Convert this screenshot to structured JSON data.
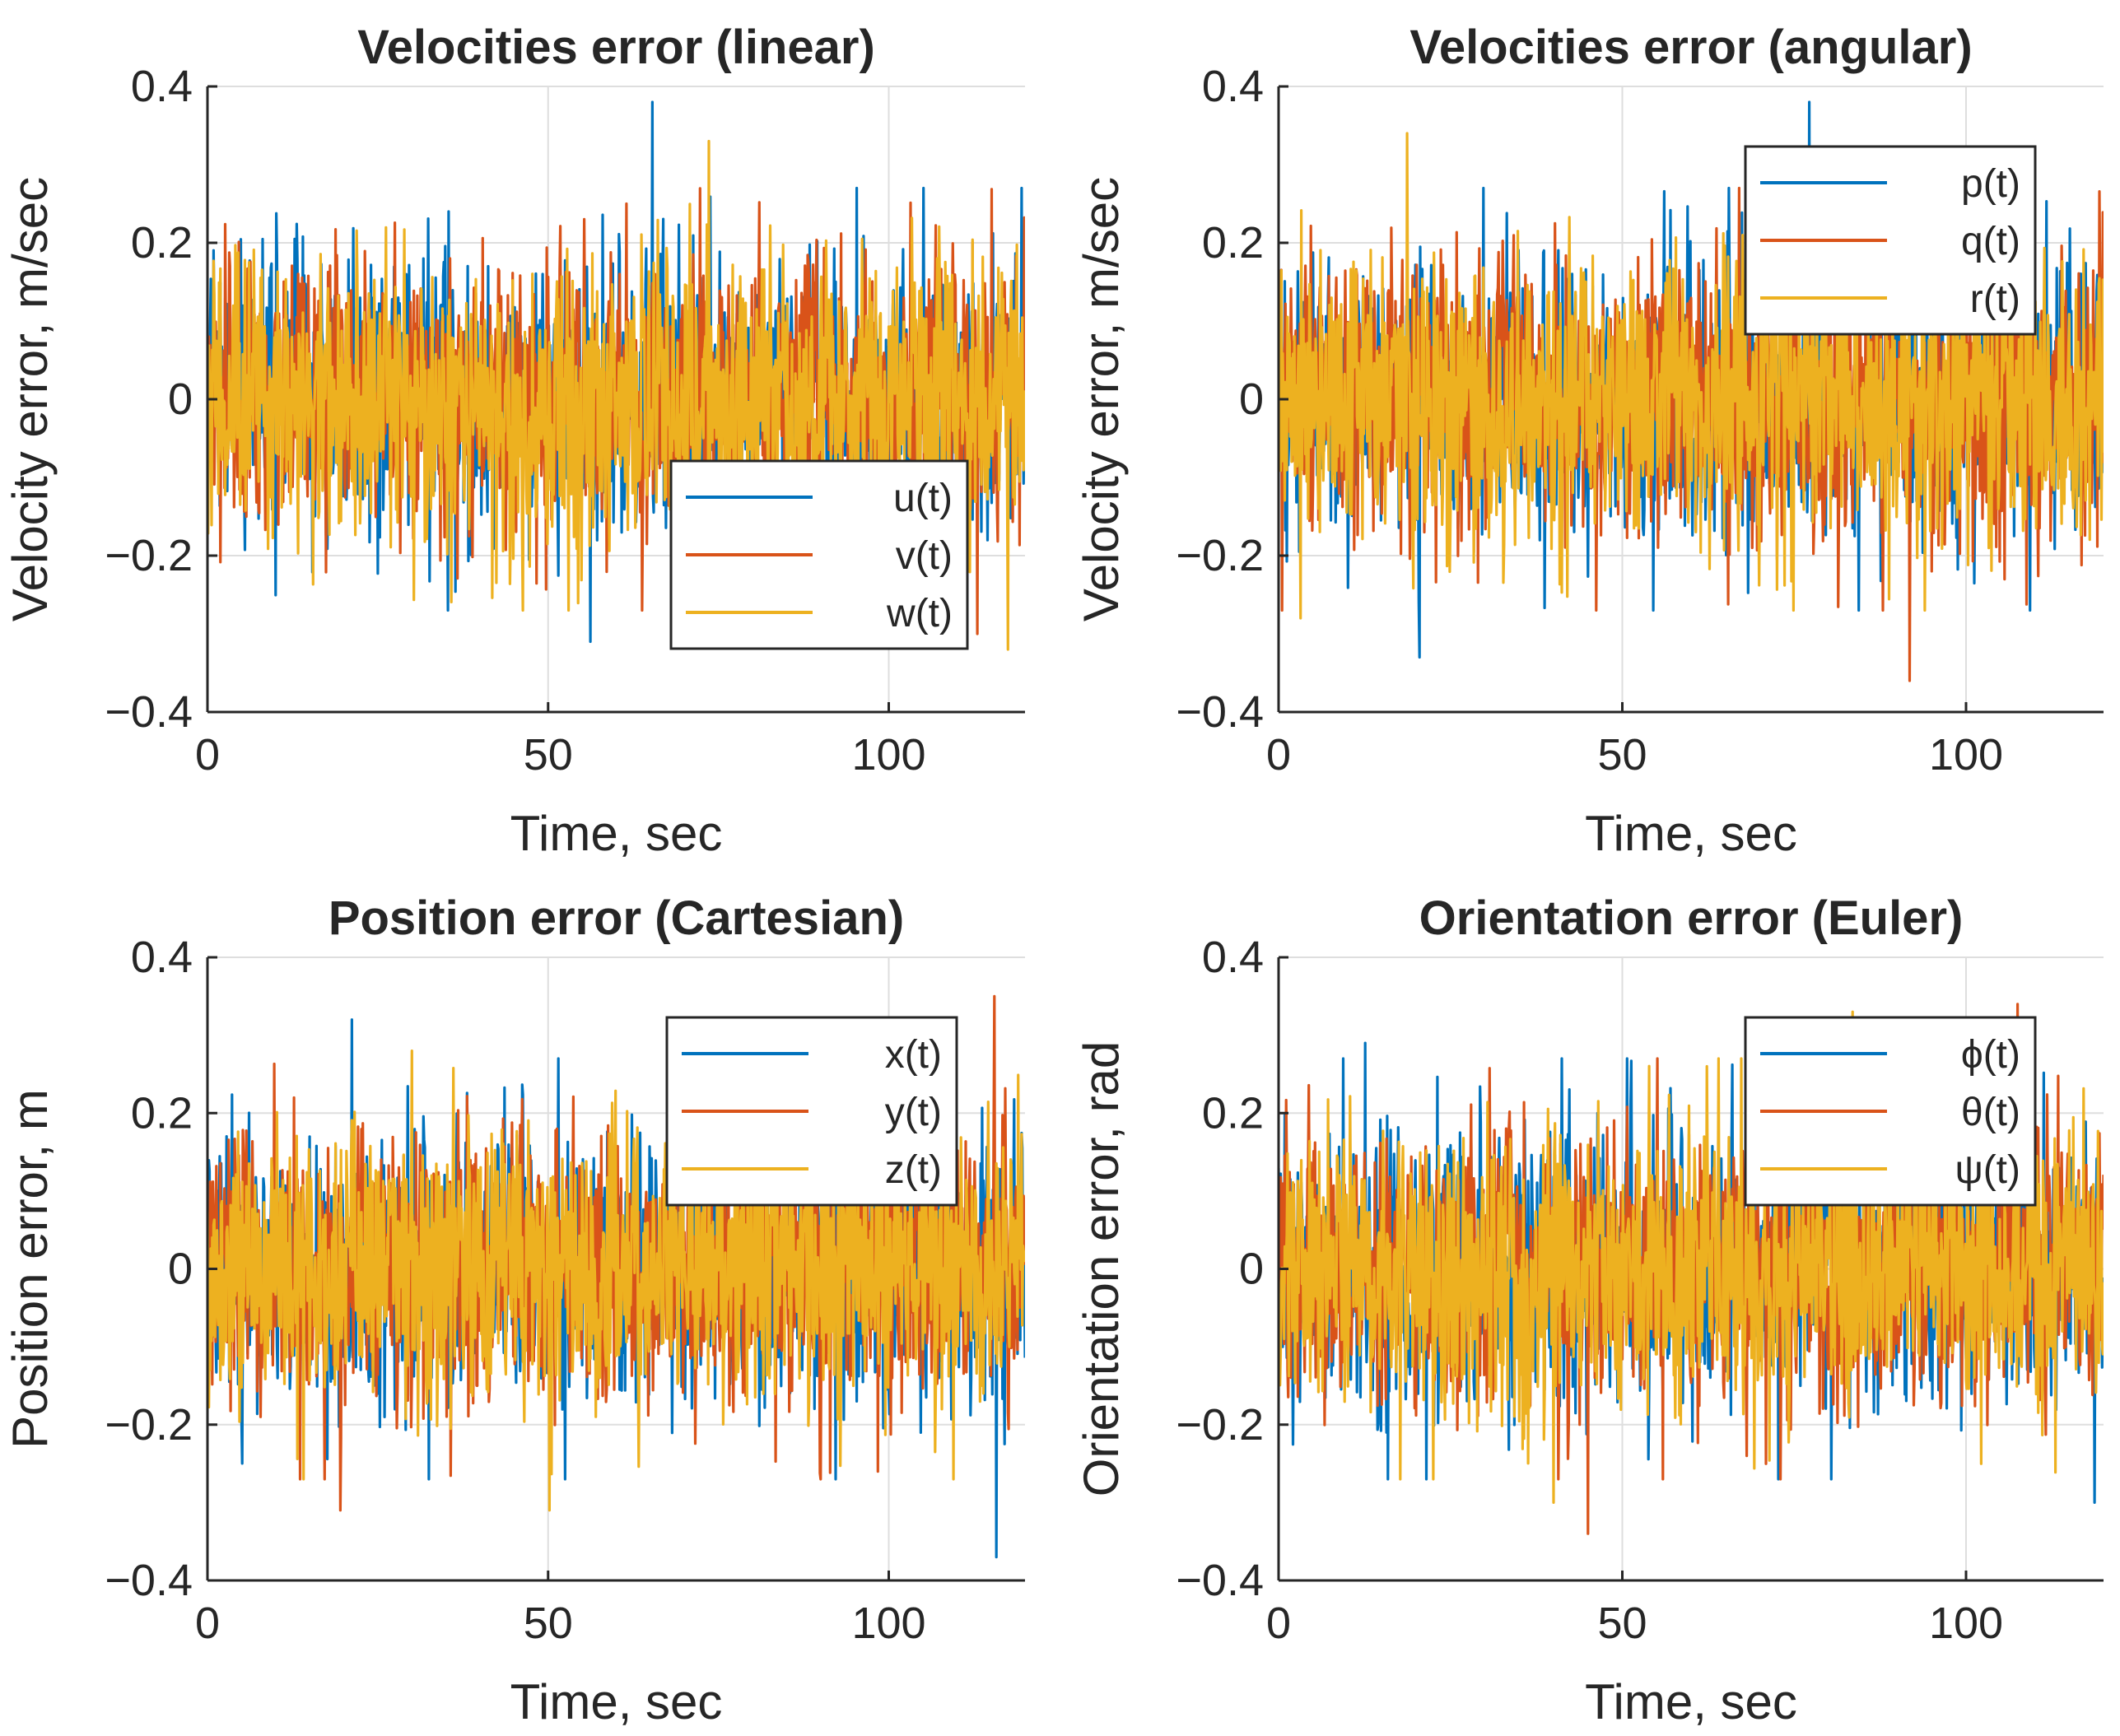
{
  "figure": {
    "background": "#ffffff"
  },
  "colors": {
    "series1": "#0072BD",
    "series2": "#D95319",
    "series3": "#EDB120",
    "grid": "#dedede",
    "axis": "#262626"
  },
  "chart_data": [
    {
      "type": "line",
      "title": "Velocities error (linear)",
      "xlabel": "Time, sec",
      "ylabel": "Velocity error, m/sec",
      "xlim": [
        0,
        120
      ],
      "ylim": [
        -0.4,
        0.4
      ],
      "xticks": [
        0,
        50,
        100
      ],
      "xtick_labels": [
        "0",
        "50",
        "100"
      ],
      "yticks": [
        -0.4,
        -0.2,
        0,
        0.2,
        0.4
      ],
      "ytick_labels": [
        "−0.4",
        "−0.2",
        "0",
        "0.2",
        "0.4"
      ],
      "grid": true,
      "legend_position": "lower-right",
      "noise_std": 0.09,
      "series": [
        {
          "name": "u(t)",
          "color": "#0072BD",
          "peak": {
            "x": 65.3,
            "y": 0.38
          },
          "trough": {
            "x": 56.2,
            "y": -0.31
          }
        },
        {
          "name": "v(t)",
          "color": "#D95319",
          "peak": {
            "x": 61.5,
            "y": 0.25
          },
          "trough": {
            "x": 113.0,
            "y": -0.3
          }
        },
        {
          "name": "w(t)",
          "color": "#EDB120",
          "peak": {
            "x": 73.6,
            "y": 0.33
          },
          "trough": {
            "x": 117.5,
            "y": -0.32
          }
        }
      ]
    },
    {
      "type": "line",
      "title": "Velocities error (angular)",
      "xlabel": "Time, sec",
      "ylabel": "Velocity error, m/sec",
      "xlim": [
        0,
        120
      ],
      "ylim": [
        -0.4,
        0.4
      ],
      "xticks": [
        0,
        50,
        100
      ],
      "xtick_labels": [
        "0",
        "50",
        "100"
      ],
      "yticks": [
        -0.4,
        -0.2,
        0,
        0.2,
        0.4
      ],
      "ytick_labels": [
        "−0.4",
        "−0.2",
        "0",
        "0.2",
        "0.4"
      ],
      "grid": true,
      "legend_position": "top-right",
      "noise_std": 0.09,
      "series": [
        {
          "name": "p(t)",
          "color": "#0072BD",
          "peak": {
            "x": 77.2,
            "y": 0.38
          },
          "trough": {
            "x": 20.5,
            "y": -0.33
          }
        },
        {
          "name": "q(t)",
          "color": "#D95319",
          "peak": {
            "x": 74.0,
            "y": 0.27
          },
          "trough": {
            "x": 91.8,
            "y": -0.36
          }
        },
        {
          "name": "r(t)",
          "color": "#EDB120",
          "peak": {
            "x": 18.7,
            "y": 0.34
          },
          "trough": {
            "x": 3.2,
            "y": -0.28
          }
        }
      ]
    },
    {
      "type": "line",
      "title": "Position error (Cartesian)",
      "xlabel": "Time, sec",
      "ylabel": "Position error, m",
      "xlim": [
        0,
        120
      ],
      "ylim": [
        -0.4,
        0.4
      ],
      "xticks": [
        0,
        50,
        100
      ],
      "xtick_labels": [
        "0",
        "50",
        "100"
      ],
      "yticks": [
        -0.4,
        -0.2,
        0,
        0.2,
        0.4
      ],
      "ytick_labels": [
        "−0.4",
        "−0.2",
        "0",
        "0.2",
        "0.4"
      ],
      "grid": true,
      "legend_position": "top-right",
      "noise_std": 0.09,
      "series": [
        {
          "name": "x(t)",
          "color": "#0072BD",
          "peak": {
            "x": 21.2,
            "y": 0.32
          },
          "trough": {
            "x": 115.8,
            "y": -0.37
          }
        },
        {
          "name": "y(t)",
          "color": "#D95319",
          "peak": {
            "x": 115.5,
            "y": 0.35
          },
          "trough": {
            "x": 19.5,
            "y": -0.31
          }
        },
        {
          "name": "z(t)",
          "color": "#EDB120",
          "peak": {
            "x": 30.0,
            "y": 0.28
          },
          "trough": {
            "x": 50.2,
            "y": -0.31
          }
        }
      ]
    },
    {
      "type": "line",
      "title": "Orientation error (Euler)",
      "xlabel": "Time, sec",
      "ylabel": "Orientation error, rad",
      "xlim": [
        0,
        120
      ],
      "ylim": [
        -0.4,
        0.4
      ],
      "xticks": [
        0,
        50,
        100
      ],
      "xtick_labels": [
        "0",
        "50",
        "100"
      ],
      "yticks": [
        -0.4,
        -0.2,
        0,
        0.2,
        0.4
      ],
      "ytick_labels": [
        "−0.4",
        "−0.2",
        "0",
        "0.2",
        "0.4"
      ],
      "grid": true,
      "legend_position": "top-right",
      "noise_std": 0.09,
      "series": [
        {
          "name": "ϕ(t)",
          "color": "#0072BD",
          "peak": {
            "x": 12.6,
            "y": 0.29
          },
          "trough": {
            "x": 118.7,
            "y": -0.3
          }
        },
        {
          "name": "θ(t)",
          "color": "#D95319",
          "peak": {
            "x": 107.5,
            "y": 0.34
          },
          "trough": {
            "x": 45.0,
            "y": -0.34
          }
        },
        {
          "name": "ψ(t)",
          "color": "#EDB120",
          "peak": {
            "x": 83.5,
            "y": 0.33
          },
          "trough": {
            "x": 40.0,
            "y": -0.3
          }
        }
      ]
    }
  ]
}
